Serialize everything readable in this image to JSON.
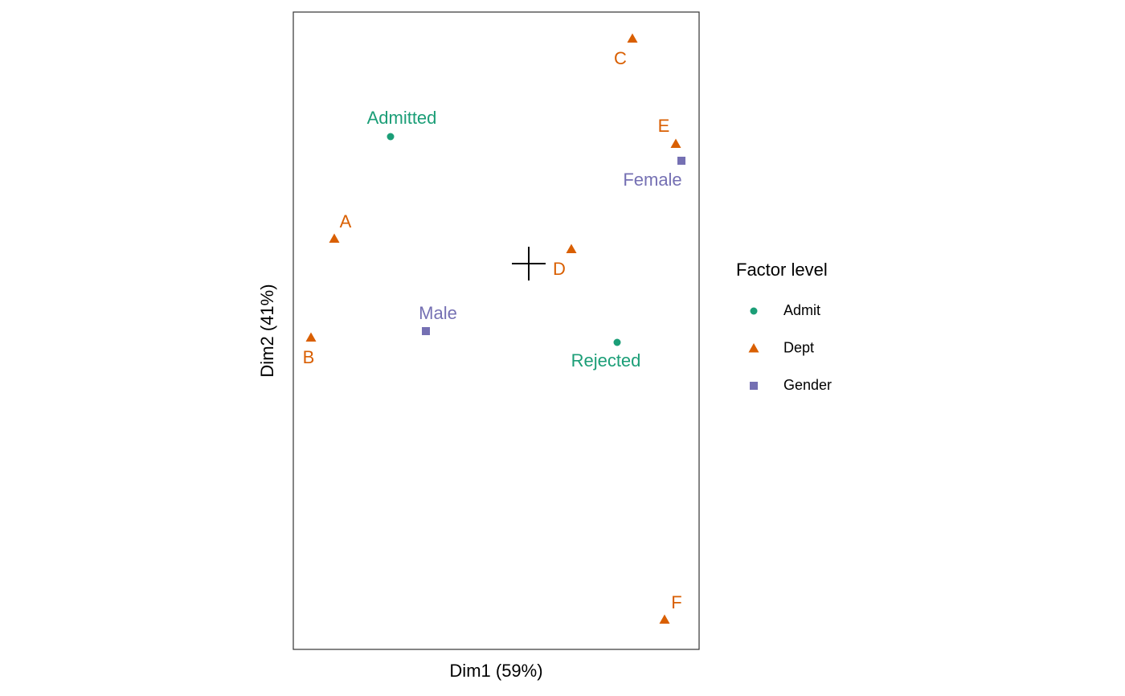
{
  "chart_data": {
    "type": "scatter",
    "xlabel": "Dim1 (59%)",
    "ylabel": "Dim2 (41%)",
    "legend_title": "Factor level",
    "xlim": [
      -0.586,
      0.424
    ],
    "ylim": [
      -0.96,
      0.626
    ],
    "series": [
      {
        "name": "Admit",
        "color": "#1b9e77",
        "marker": "circle",
        "labels": [
          "Admitted",
          "Rejected"
        ],
        "x": [
          -0.344,
          0.22
        ],
        "y": [
          0.316,
          -0.196
        ]
      },
      {
        "name": "Dept",
        "color": "#d95f02",
        "marker": "triangle",
        "labels": [
          "A",
          "B",
          "C",
          "D",
          "E",
          "F"
        ],
        "x": [
          -0.484,
          -0.542,
          0.258,
          0.106,
          0.366,
          0.338
        ],
        "y": [
          0.062,
          -0.184,
          0.56,
          0.036,
          0.298,
          -0.886
        ]
      },
      {
        "name": "Gender",
        "color": "#7570b3",
        "marker": "square",
        "labels": [
          "Male",
          "Female"
        ],
        "x": [
          -0.256,
          0.38
        ],
        "y": [
          -0.168,
          0.256
        ]
      }
    ]
  }
}
